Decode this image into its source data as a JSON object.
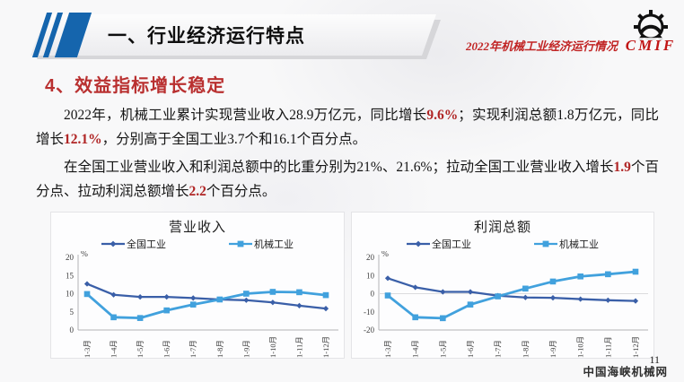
{
  "header": {
    "title": "一、行业经济运行特点",
    "subtitle": "2022年机械工业经济运行情况",
    "logo_text": "CMIF"
  },
  "section_heading": "4、效益指标增长稳定",
  "paragraphs": [
    {
      "segments": [
        {
          "t": "2022年，机械工业累计实现营业收入28.9万亿元，同比增长"
        },
        {
          "t": "9.6%",
          "red": true
        },
        {
          "t": "；实现利润总额1.8万亿元，同比增长"
        },
        {
          "t": "12.1%",
          "red": true
        },
        {
          "t": "，分别高于全国工业3.7个和16.1个百分点。"
        }
      ]
    },
    {
      "segments": [
        {
          "t": "在全国工业营业收入和利润总额中的比重分别为21%、21.6%；拉动全国工业营业收入增长"
        },
        {
          "t": "1.9",
          "red": true
        },
        {
          "t": "个百分点、拉动利润总额增长"
        },
        {
          "t": "2.2",
          "red": true
        },
        {
          "t": "个百分点。"
        }
      ]
    }
  ],
  "footer": {
    "page_number": "11",
    "watermark": "中国海峡机械网"
  },
  "colors": {
    "accent_red": "#b93030",
    "stripe_blue": "#1565ad",
    "line_dark_blue": "#3a5fa8",
    "line_light_blue": "#41a1dd"
  },
  "chart_data": [
    {
      "type": "line",
      "title": "营业收入",
      "unit_label": "%",
      "categories": [
        "1-3月",
        "1-4月",
        "1-5月",
        "1-6月",
        "1-7月",
        "1-8月",
        "1-9月",
        "1-10月",
        "1-11月",
        "1-12月"
      ],
      "ylim": [
        0,
        20
      ],
      "yticks": [
        0,
        5,
        10,
        15,
        20
      ],
      "grid": "axes-only",
      "legend_position": "top",
      "series": [
        {
          "name": "全国工业",
          "color": "#3a5fa8",
          "marker": "diamond",
          "values": [
            12.7,
            9.7,
            9.1,
            9.1,
            8.8,
            8.4,
            8.2,
            7.6,
            6.7,
            5.9
          ]
        },
        {
          "name": "机械工业",
          "color": "#41a1dd",
          "marker": "square",
          "values": [
            9.9,
            3.5,
            3.3,
            5.4,
            7.0,
            8.4,
            10.0,
            10.5,
            10.4,
            9.6
          ]
        }
      ]
    },
    {
      "type": "line",
      "title": "利润总额",
      "unit_label": "%",
      "categories": [
        "1-3月",
        "1-4月",
        "1-5月",
        "1-6月",
        "1-7月",
        "1-8月",
        "1-9月",
        "1-10月",
        "1-11月",
        "1-12月"
      ],
      "ylim": [
        -20,
        20
      ],
      "yticks": [
        -20,
        -10,
        0,
        10,
        20
      ],
      "grid": "zero-line",
      "legend_position": "top",
      "series": [
        {
          "name": "全国工业",
          "color": "#3a5fa8",
          "marker": "diamond",
          "values": [
            8.5,
            3.5,
            1.0,
            1.0,
            -1.1,
            -2.1,
            -2.3,
            -3.0,
            -3.6,
            -4.0
          ]
        },
        {
          "name": "机械工业",
          "color": "#41a1dd",
          "marker": "square",
          "values": [
            -1.0,
            -13.0,
            -13.5,
            -6.0,
            -1.5,
            2.8,
            6.7,
            9.5,
            10.7,
            12.1
          ]
        }
      ]
    }
  ]
}
